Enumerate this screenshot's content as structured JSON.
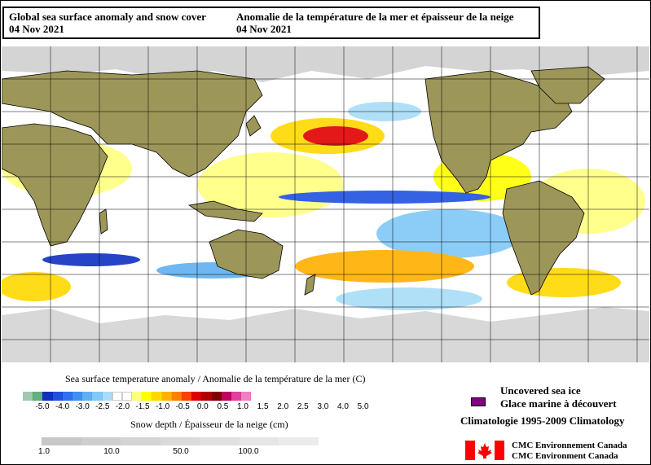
{
  "title": {
    "en_line1": "Global sea surface anomaly and snow cover",
    "en_line2": "04 Nov 2021",
    "fr_line1": "Anomalie de la température de la mer et épaisseur de la neige",
    "fr_line2": "04 Nov 2021"
  },
  "map": {
    "ocean_color": "#ffffff",
    "land_color": "#9c9659",
    "snow_color": "#d0d0d0",
    "grid_color": "#000000"
  },
  "sst_legend": {
    "label": "Sea surface temperature anomaly / Anomalie de la température de la mer (C)",
    "colors": [
      "#a0c8b0",
      "#60b080",
      "#1030c0",
      "#2050e0",
      "#3070f0",
      "#4090f0",
      "#60b0f0",
      "#80c8f8",
      "#a8dcf8",
      "#ffffff",
      "#ffffff",
      "#ffff80",
      "#ffff00",
      "#ffd800",
      "#ffb000",
      "#ff8000",
      "#ff4000",
      "#e00000",
      "#b00000",
      "#800000",
      "#c00060",
      "#e040a0",
      "#f080c0"
    ],
    "ticks": [
      "-5.0",
      "-4.0",
      "-3.0",
      "-2.5",
      "-2.0",
      "-1.5",
      "-1.0",
      "-0.5",
      "0.0",
      "0.5",
      "1.0",
      "1.5",
      "2.0",
      "2.5",
      "3.0",
      "4.0",
      "5.0"
    ]
  },
  "snow_legend": {
    "label": "Snow depth / Épaisseur de la neige (cm)",
    "colors": [
      "#c8c8c8",
      "#cecece",
      "#d4d4d4",
      "#dadada",
      "#e0e0e0",
      "#e6e6e6",
      "#ececec"
    ],
    "ticks": [
      "1.0",
      "10.0",
      "50.0",
      "100.0"
    ]
  },
  "ice_legend": {
    "line1": "Uncovered sea ice",
    "line2": "Glace marine à découvert",
    "color": "#800080"
  },
  "climatology": "Climatologie 1995-2009 Climatology",
  "agency": {
    "line1": "CMC Environnement Canada",
    "line2": "CMC Environment Canada",
    "flag_red": "#ff0000"
  }
}
